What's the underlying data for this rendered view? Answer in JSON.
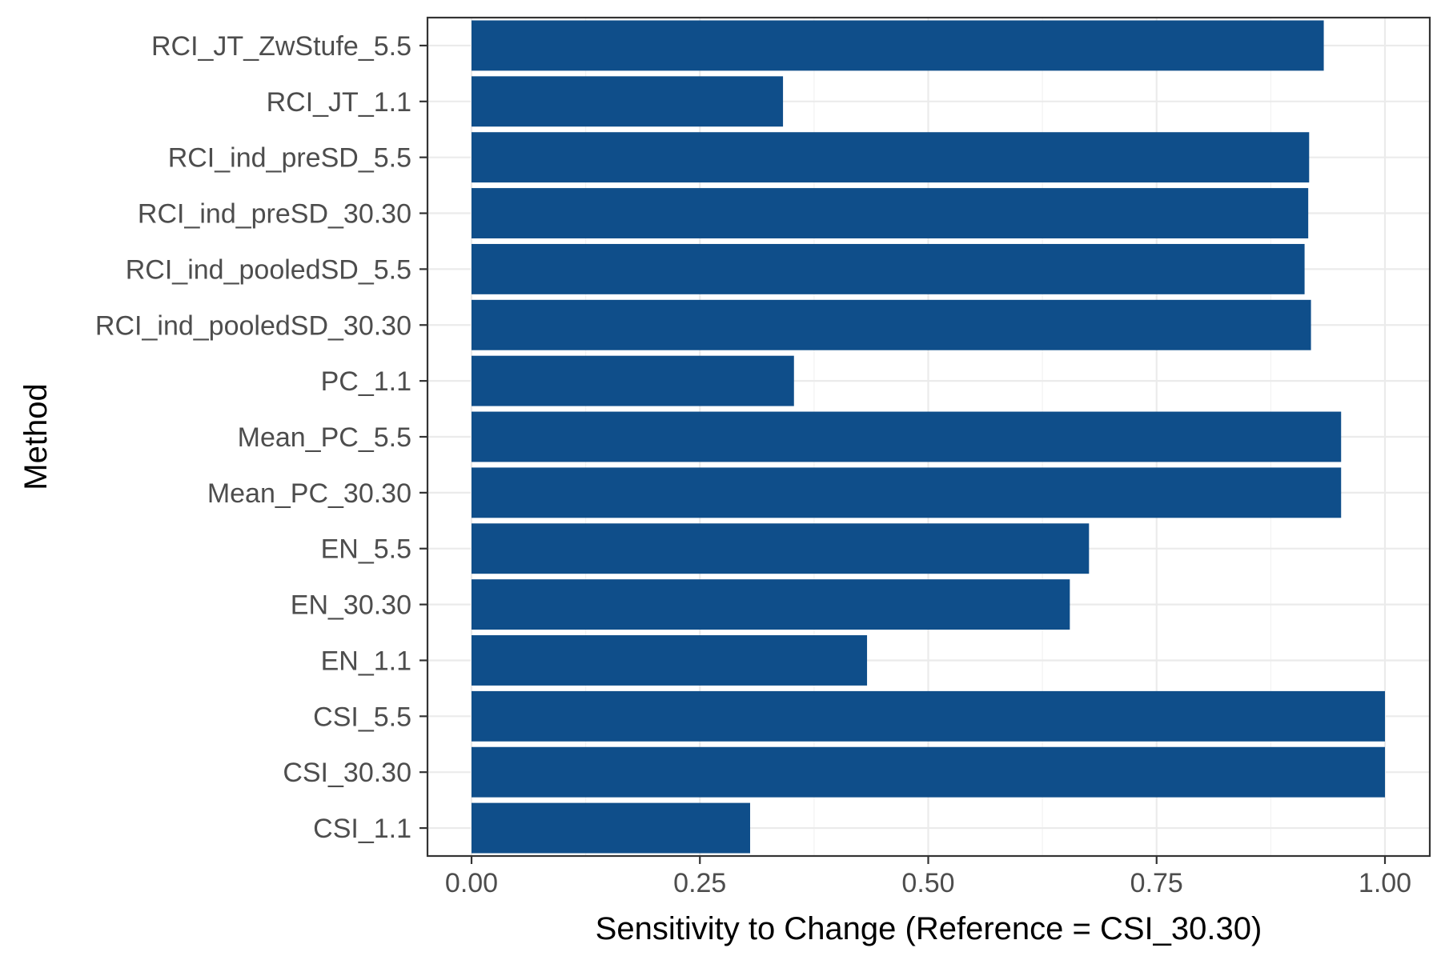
{
  "chart_data": {
    "type": "bar",
    "orientation": "horizontal",
    "xlabel": "Sensitivity to Change (Reference = CSI_30.30)",
    "ylabel": "Method",
    "xlim": [
      0,
      1
    ],
    "x_ticks": [
      "0.00",
      "0.25",
      "0.50",
      "0.75",
      "1.00"
    ],
    "grid": true,
    "bar_color": "#0f4e8a",
    "categories": [
      "RCI_JT_ZwStufe_5.5",
      "RCI_JT_1.1",
      "RCI_ind_preSD_5.5",
      "RCI_ind_preSD_30.30",
      "RCI_ind_pooledSD_5.5",
      "RCI_ind_pooledSD_30.30",
      "PC_1.1",
      "Mean_PC_5.5",
      "Mean_PC_30.30",
      "EN_5.5",
      "EN_30.30",
      "EN_1.1",
      "CSI_5.5",
      "CSI_30.30",
      "CSI_1.1"
    ],
    "values": [
      0.933,
      0.341,
      0.917,
      0.916,
      0.912,
      0.919,
      0.353,
      0.952,
      0.952,
      0.676,
      0.655,
      0.433,
      1.0,
      1.0,
      0.305
    ]
  }
}
